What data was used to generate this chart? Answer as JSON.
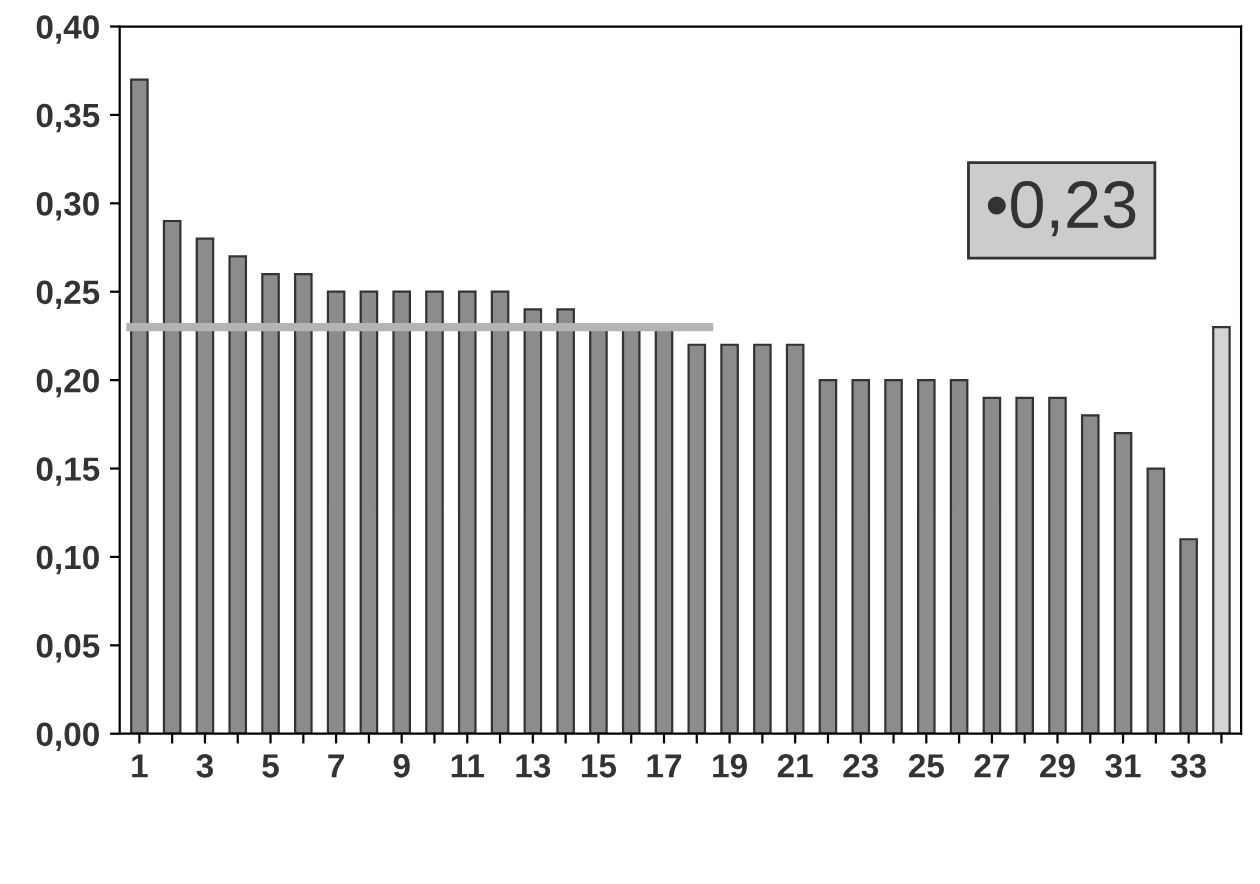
{
  "chart_data": {
    "type": "bar",
    "categories": [
      "1",
      null,
      "3",
      null,
      "5",
      null,
      "7",
      null,
      "9",
      null,
      "11",
      null,
      "13",
      null,
      "15",
      null,
      "17",
      null,
      "19",
      null,
      "21",
      null,
      "23",
      null,
      "25",
      null,
      "27",
      null,
      "29",
      null,
      "31",
      null,
      "33",
      null
    ],
    "values": [
      0.37,
      0.29,
      0.28,
      0.27,
      0.26,
      0.26,
      0.25,
      0.25,
      0.25,
      0.25,
      0.25,
      0.25,
      0.24,
      0.24,
      0.23,
      0.23,
      0.23,
      0.22,
      0.22,
      0.22,
      0.22,
      0.2,
      0.2,
      0.2,
      0.2,
      0.2,
      0.19,
      0.19,
      0.19,
      0.18,
      0.17,
      0.15,
      0.11,
      0.23
    ],
    "colors": [
      "#8c8c8c",
      "#8c8c8c",
      "#8c8c8c",
      "#8c8c8c",
      "#8c8c8c",
      "#8c8c8c",
      "#8c8c8c",
      "#8c8c8c",
      "#8c8c8c",
      "#8c8c8c",
      "#8c8c8c",
      "#8c8c8c",
      "#8c8c8c",
      "#8c8c8c",
      "#8c8c8c",
      "#8c8c8c",
      "#8c8c8c",
      "#8c8c8c",
      "#8c8c8c",
      "#8c8c8c",
      "#8c8c8c",
      "#8c8c8c",
      "#8c8c8c",
      "#8c8c8c",
      "#8c8c8c",
      "#8c8c8c",
      "#8c8c8c",
      "#8c8c8c",
      "#8c8c8c",
      "#8c8c8c",
      "#8c8c8c",
      "#8c8c8c",
      "#8c8c8c",
      "#d4d4d4"
    ],
    "ylim": [
      0,
      0.4
    ],
    "yticks": [
      {
        "value": 0,
        "label": "0,00"
      },
      {
        "value": 0.05,
        "label": "0,05"
      },
      {
        "value": 0.1,
        "label": "0,10"
      },
      {
        "value": 0.15,
        "label": "0,15"
      },
      {
        "value": 0.2,
        "label": "0,20"
      },
      {
        "value": 0.25,
        "label": "0,25"
      },
      {
        "value": 0.3,
        "label": "0,30"
      },
      {
        "value": 0.35,
        "label": "0,35"
      },
      {
        "value": 0.4,
        "label": "0,40"
      }
    ],
    "ref_lines": [
      {
        "axis": "y",
        "value": 0.23,
        "color": "#b4b4b4"
      }
    ],
    "annotations": [
      "•0,23"
    ],
    "grid": false
  }
}
